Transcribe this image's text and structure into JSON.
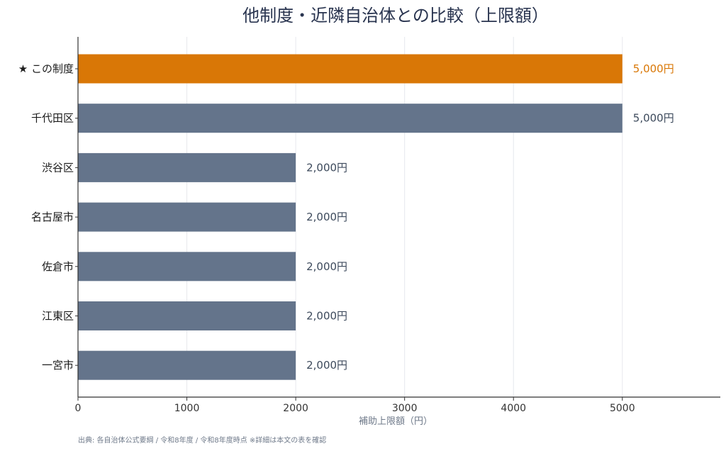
{
  "chart_data": {
    "type": "bar",
    "orientation": "horizontal",
    "title": "他制度・近隣自治体との比較（上限額）",
    "xlabel": "補助上限額（円）",
    "ylabel": "",
    "xlim": [
      0,
      5900
    ],
    "xticks": [
      0,
      1000,
      2000,
      3000,
      4000,
      5000
    ],
    "xtick_labels": [
      "0",
      "1000",
      "2000",
      "3000",
      "4000",
      "5000"
    ],
    "grid": "vertical",
    "legend": "none",
    "categories": [
      "★ この制度",
      "千代田区",
      "渋谷区",
      "名古屋市",
      "佐倉市",
      "江東区",
      "一宮市"
    ],
    "values": [
      5000,
      5000,
      2000,
      2000,
      2000,
      2000,
      2000
    ],
    "value_labels": [
      "5,000円",
      "5,000円",
      "2,000円",
      "2,000円",
      "2,000円",
      "2,000円",
      "2,000円"
    ],
    "highlight_index": 0,
    "colors": {
      "highlight": "#d97706",
      "default": "#64748b",
      "highlight_text": "#d97706",
      "default_text": "#3d4a5c"
    }
  },
  "footer": {
    "source": "出典: 各自治体公式要綱 / 令和8年度 / 令和8年度時点 ※詳細は本文の表を確認"
  }
}
